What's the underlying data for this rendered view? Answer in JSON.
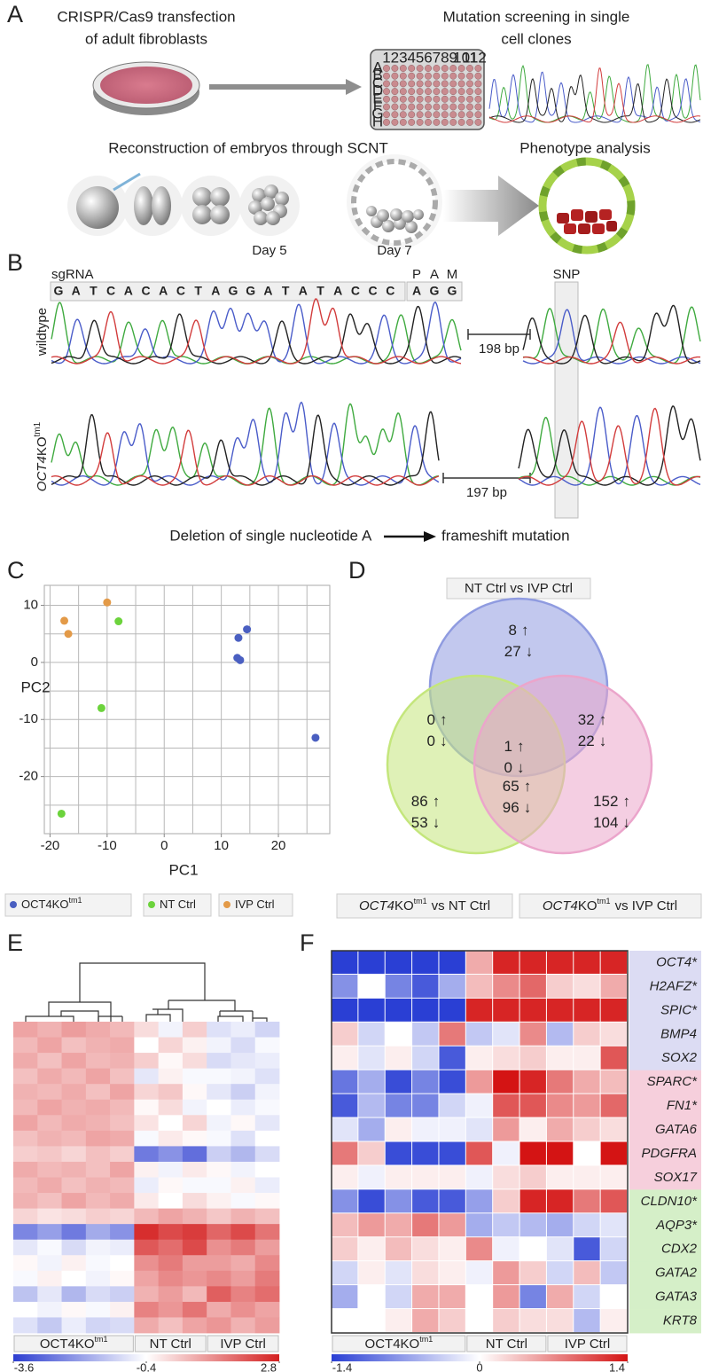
{
  "panel_a": {
    "label": "A",
    "transfection": [
      "CRISPR/Cas9 transfection",
      "of adult fibroblasts"
    ],
    "screening": [
      "Mutation screening in single",
      "cell clones"
    ],
    "plate_columns": [
      "1",
      "2",
      "3",
      "4",
      "5",
      "6",
      "7",
      "8",
      "9",
      "10",
      "11",
      "12"
    ],
    "plate_rows": [
      "A",
      "B",
      "C",
      "D",
      "E",
      "F",
      "G",
      "H"
    ],
    "reconstruction": "Reconstruction of embryos through SCNT",
    "phenotype": "Phenotype analysis",
    "day5": "Day 5",
    "day7": "Day 7"
  },
  "panel_b": {
    "label": "B",
    "sgrna_label": "sgRNA",
    "sgrna": [
      "G",
      "A",
      "T",
      "C",
      "A",
      "C",
      "A",
      "C",
      "T",
      "A",
      "G",
      "G",
      "A",
      "T",
      "A",
      "T",
      "A",
      "C",
      "C",
      "C"
    ],
    "pam_label": [
      "P",
      "A",
      "M"
    ],
    "pam": [
      "A",
      "G",
      "G"
    ],
    "base_colors": {
      "A": "#3faa3f",
      "C": "#4a5cc9",
      "G": "#222222",
      "T": "#d23c3c"
    },
    "snp": "SNP",
    "wildtype": "wildtype",
    "mutant": {
      "gene": "OCT4",
      "suffix": "KO",
      "sup": "tm1"
    },
    "gap_wt": "198 bp",
    "gap_ko": "197 bp",
    "caption": [
      "Deletion of single nucleotide",
      "A",
      "frameshift mutation"
    ]
  },
  "panel_d": {
    "label": "D",
    "titles": [
      "NT Ctrl vs IVP Ctrl"
    ],
    "comparisons": [
      {
        "gene": "OCT4",
        "suffix": "KO",
        "sup": "tm1",
        "rest": "vs NT Ctrl"
      },
      {
        "gene": "OCT4",
        "suffix": "KO",
        "sup": "tm1",
        "rest": "vs IVP Ctrl"
      }
    ],
    "colors": [
      "#8f9be0",
      "#c4e67c",
      "#eba5cb"
    ],
    "up_symbol": "↑",
    "down_symbol": "↓",
    "regions": [
      {
        "up": 8,
        "down": 27
      },
      {
        "up": 0,
        "down": 0
      },
      {
        "up": 1,
        "down": 0
      },
      {
        "up": 32,
        "down": 22
      },
      {
        "up": 86,
        "down": 53
      },
      {
        "up": 65,
        "down": 96
      },
      {
        "up": 152,
        "down": 104
      }
    ]
  },
  "chart_data": [
    {
      "type": "scatter",
      "panel_label": "C",
      "xlabel": "PC1",
      "ylabel": "PC2",
      "xlim": [
        -21,
        29
      ],
      "ylim": [
        -30,
        13.5
      ],
      "xticks": [
        -20,
        -10,
        0,
        10,
        20
      ],
      "yticks": [
        -20,
        -10,
        0,
        10
      ],
      "xgrid": [
        -20,
        -15,
        -10,
        -5,
        0,
        5,
        10,
        15,
        20,
        25
      ],
      "ygrid": [
        -25,
        -20,
        -15,
        -10,
        -5,
        0,
        5,
        10
      ],
      "series": [
        {
          "name": "OCT4KO",
          "name_sup": "tm1",
          "color": "#4a5fc1",
          "x": [
            14.5,
            13,
            12.8,
            13.3,
            26.5
          ],
          "y": [
            5.8,
            4.3,
            0.8,
            0.4,
            -13.2
          ]
        },
        {
          "name": "NT Ctrl",
          "color": "#6cd33c",
          "x": [
            -8,
            -11,
            -18
          ],
          "y": [
            7.2,
            -8,
            -26.5
          ]
        },
        {
          "name": "IVP Ctrl",
          "color": "#e39a48",
          "x": [
            -17.5,
            -16.8,
            -10
          ],
          "y": [
            7.3,
            5,
            10.5
          ]
        }
      ]
    },
    {
      "type": "heatmap",
      "panel_label": "E",
      "clim": [
        -3.6,
        2.8
      ],
      "cticks": [
        -3.6,
        -0.4,
        2.8
      ],
      "colormap": [
        "#2d3ed0",
        "#ffffff",
        "#d42020"
      ],
      "groups": [
        {
          "name": "OCT4KO",
          "sup": "tm1",
          "values": [
            [
              0.9,
              0.7,
              1.0,
              0.8,
              0.6
            ],
            [
              0.6,
              0.9,
              0.5,
              0.7,
              0.8
            ],
            [
              0.8,
              0.5,
              0.9,
              0.6,
              0.7
            ],
            [
              0.5,
              0.8,
              0.6,
              0.9,
              0.5
            ],
            [
              0.7,
              0.6,
              0.8,
              0.5,
              0.9
            ],
            [
              0.6,
              0.9,
              0.7,
              0.8,
              0.6
            ],
            [
              0.9,
              0.6,
              0.8,
              0.7,
              0.5
            ],
            [
              0.5,
              0.7,
              0.6,
              0.9,
              0.8
            ],
            [
              0.3,
              0.4,
              0.2,
              0.5,
              0.3
            ],
            [
              0.8,
              0.6,
              0.7,
              0.5,
              0.9
            ],
            [
              0.6,
              0.8,
              0.5,
              0.7,
              0.6
            ],
            [
              0.7,
              0.5,
              0.9,
              0.6,
              0.8
            ],
            [
              0.2,
              0.0,
              0.1,
              0.3,
              0.2
            ],
            [
              -2.4,
              -2.0,
              -2.6,
              -1.8,
              -2.2
            ],
            [
              -0.8,
              -0.5,
              -1.0,
              -0.6,
              -0.7
            ],
            [
              -0.3,
              -0.6,
              -0.2,
              -0.5,
              -0.4
            ],
            [
              -0.5,
              -0.2,
              -0.4,
              -0.6,
              -0.3
            ],
            [
              -1.4,
              -0.8,
              -1.6,
              -1.0,
              -1.2
            ],
            [
              -0.4,
              -0.6,
              -0.3,
              -0.5,
              -0.2
            ],
            [
              -0.9,
              -1.3,
              -0.7,
              -1.1,
              -1.0
            ]
          ]
        },
        {
          "name": "NT Ctrl",
          "values": [
            [
              0.1,
              -0.6,
              0.3
            ],
            [
              -0.4,
              0.2,
              -0.2
            ],
            [
              0.3,
              -0.3,
              0.1
            ],
            [
              -0.8,
              -0.2,
              -0.5
            ],
            [
              0.2,
              0.4,
              -0.3
            ],
            [
              -0.3,
              0.1,
              -0.6
            ],
            [
              0.0,
              -0.4,
              0.2
            ],
            [
              -0.5,
              -0.1,
              -0.3
            ],
            [
              -2.6,
              -2.2,
              -2.8
            ],
            [
              -0.2,
              -0.6,
              -0.1
            ],
            [
              -0.7,
              -0.3,
              -0.5
            ],
            [
              -0.1,
              -0.4,
              0.1
            ],
            [
              0.6,
              0.9,
              0.7
            ],
            [
              2.6,
              2.2,
              2.4
            ],
            [
              2.0,
              1.7,
              2.2
            ],
            [
              1.2,
              1.5,
              1.0
            ],
            [
              0.9,
              1.3,
              1.1
            ],
            [
              0.7,
              1.0,
              0.6
            ],
            [
              1.4,
              1.1,
              1.6
            ],
            [
              0.8,
              0.5,
              0.9
            ]
          ]
        },
        {
          "name": "IVP Ctrl",
          "values": [
            [
              -0.9,
              -0.7,
              -1.1
            ],
            [
              -0.6,
              -1.0,
              -0.5
            ],
            [
              -1.0,
              -0.8,
              -0.7
            ],
            [
              -0.5,
              -0.6,
              -0.9
            ],
            [
              -0.8,
              -1.2,
              -0.6
            ],
            [
              -0.4,
              -0.7,
              -0.5
            ],
            [
              -0.6,
              -0.3,
              -0.8
            ],
            [
              -0.5,
              -0.9,
              -0.4
            ],
            [
              -1.2,
              -1.6,
              -1.0
            ],
            [
              -0.3,
              -0.6,
              -0.4
            ],
            [
              -0.5,
              -0.2,
              -0.7
            ],
            [
              -0.2,
              -0.5,
              -0.3
            ],
            [
              0.4,
              0.7,
              0.5
            ],
            [
              1.8,
              2.2,
              1.6
            ],
            [
              1.2,
              1.5,
              1.0
            ],
            [
              1.0,
              0.8,
              1.3
            ],
            [
              1.3,
              1.0,
              1.5
            ],
            [
              1.9,
              1.4,
              1.7
            ],
            [
              0.8,
              1.2,
              0.9
            ],
            [
              1.1,
              0.7,
              1.0
            ]
          ]
        }
      ]
    },
    {
      "type": "heatmap",
      "panel_label": "F",
      "clim": [
        -1.4,
        1.4
      ],
      "cticks": [
        -1.4,
        0,
        1.4
      ],
      "colormap": [
        "#2a3fd4",
        "#ffffff",
        "#d41414"
      ],
      "gene_sets": [
        {
          "color": "#dcdcf3",
          "genes": [
            "OCT4*",
            "H2AFZ*",
            "SPIC*",
            "BMP4",
            "SOX2"
          ]
        },
        {
          "color": "#f6cfdc",
          "genes": [
            "SPARC*",
            "FN1*",
            "GATA6",
            "PDGFRA",
            "SOX17"
          ]
        },
        {
          "color": "#d5efc8",
          "genes": [
            "CLDN10*",
            "AQP3*",
            "CDX2",
            "GATA2",
            "GATA3",
            "KRT8"
          ]
        }
      ],
      "groups": [
        {
          "name": "OCT4KO",
          "sup": "tm1",
          "values": [
            [
              -1.4,
              -1.4,
              -1.4,
              -1.4,
              -1.4
            ],
            [
              -0.8,
              0,
              -0.9,
              -1.2,
              -0.6
            ],
            [
              -1.4,
              -1.4,
              -1.4,
              -1.4,
              -1.4
            ],
            [
              0.3,
              -0.3,
              0,
              -0.4,
              0.8
            ],
            [
              0.1,
              -0.2,
              0.1,
              -0.3,
              -1.2
            ],
            [
              -1.0,
              -0.6,
              -1.3,
              -0.9,
              -1.3
            ],
            [
              -1.2,
              -0.5,
              -0.9,
              -0.9,
              -0.3
            ],
            [
              -0.2,
              -0.6,
              0.1,
              -0.1,
              -0.1
            ],
            [
              0.8,
              0.3,
              -1.3,
              -1.3,
              -1.3
            ],
            [
              0.1,
              -0.1,
              0.1,
              0.1,
              0.1
            ],
            [
              -0.8,
              -1.3,
              -0.8,
              -1.2,
              -1.2
            ],
            [
              0.4,
              0.6,
              0.5,
              0.8,
              0.6
            ],
            [
              0.3,
              0.1,
              0.4,
              0.2,
              0.1
            ],
            [
              -0.3,
              0.1,
              -0.2,
              0.2,
              0.1
            ],
            [
              -0.6,
              0,
              -0.3,
              0.5,
              0.5
            ],
            [
              0,
              0,
              0.1,
              0.5,
              0.3
            ]
          ]
        },
        {
          "name": "NT Ctrl",
          "values": [
            [
              0.5,
              1.3,
              1.3
            ],
            [
              0.4,
              0.7,
              0.9
            ],
            [
              1.3,
              1.3,
              1.3
            ],
            [
              -0.4,
              -0.2,
              0.7
            ],
            [
              0.1,
              0.2,
              0.3
            ],
            [
              0.6,
              1.4,
              1.3
            ],
            [
              -0.1,
              1.0,
              1.0
            ],
            [
              -0.2,
              0.6,
              0.1
            ],
            [
              1.0,
              -0.1,
              1.4
            ],
            [
              -0.1,
              0.2,
              0.3
            ],
            [
              -0.7,
              0.3,
              1.3
            ],
            [
              -0.6,
              -0.4,
              -0.5
            ],
            [
              0.7,
              -0.1,
              0
            ],
            [
              -0.1,
              0.6,
              0.3
            ],
            [
              0,
              0.6,
              -0.9
            ],
            [
              0,
              0.3,
              0.2
            ]
          ]
        },
        {
          "name": "IVP Ctrl",
          "values": [
            [
              1.3,
              1.3,
              1.3
            ],
            [
              0.3,
              0.2,
              0.5
            ],
            [
              1.3,
              1.3,
              1.3
            ],
            [
              -0.5,
              0.3,
              0.2
            ],
            [
              0.1,
              0.1,
              1.0
            ],
            [
              0.8,
              0.5,
              0.4
            ],
            [
              0.7,
              0.6,
              0.9
            ],
            [
              0.5,
              0.3,
              0.2
            ],
            [
              1.4,
              0,
              1.4
            ],
            [
              0.1,
              0.1,
              0.1
            ],
            [
              1.3,
              0.8,
              1.0
            ],
            [
              -0.6,
              -0.3,
              -0.2
            ],
            [
              -0.2,
              -1.2,
              -0.3
            ],
            [
              -0.3,
              0.4,
              -0.4
            ],
            [
              0.5,
              -0.3,
              0
            ],
            [
              0.2,
              -0.5,
              0.1
            ]
          ]
        }
      ]
    }
  ]
}
